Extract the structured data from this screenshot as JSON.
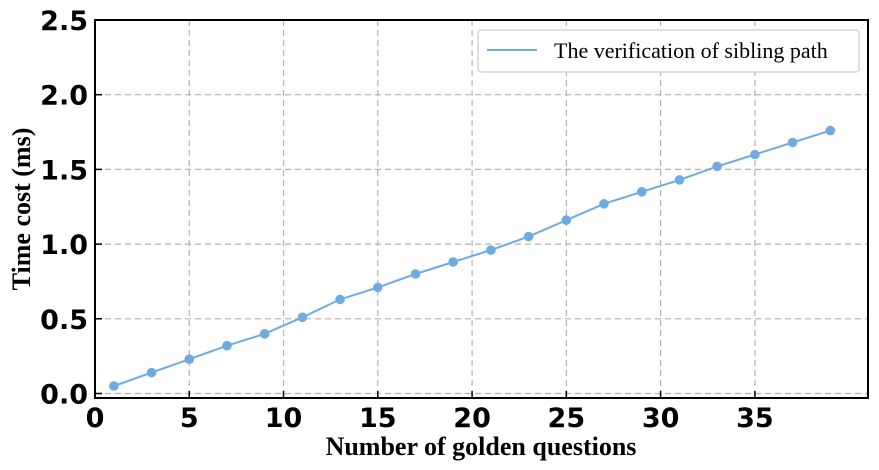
{
  "chart_data": {
    "type": "line",
    "xlabel": "Number of golden questions",
    "ylabel": "Time cost (ms)",
    "xlim": [
      0,
      41
    ],
    "ylim": [
      -0.03,
      2.5
    ],
    "xticks": [
      0,
      5,
      10,
      15,
      20,
      25,
      30,
      35
    ],
    "yticks": [
      0.0,
      0.5,
      1.0,
      1.5,
      2.0,
      2.5
    ],
    "xtick_labels": [
      "0",
      "5",
      "10",
      "15",
      "20",
      "25",
      "30",
      "35"
    ],
    "ytick_labels": [
      "0.0",
      "0.5",
      "1.0",
      "1.5",
      "2.0",
      "2.5"
    ],
    "grid": true,
    "legend_position": "top-right",
    "series": [
      {
        "name": "The verification of sibling path",
        "color": "#6fabe0",
        "marker": "circle",
        "x": [
          1,
          3,
          5,
          7,
          9,
          11,
          13,
          15,
          17,
          19,
          21,
          23,
          25,
          27,
          29,
          31,
          33,
          35,
          37,
          39
        ],
        "y": [
          0.05,
          0.14,
          0.23,
          0.32,
          0.4,
          0.51,
          0.63,
          0.71,
          0.8,
          0.88,
          0.96,
          1.05,
          1.16,
          1.27,
          1.35,
          1.43,
          1.52,
          1.6,
          1.68,
          1.76
        ]
      }
    ]
  }
}
